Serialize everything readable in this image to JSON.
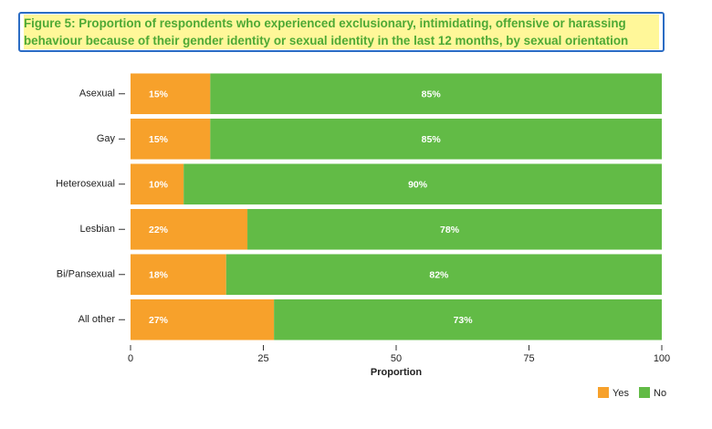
{
  "chart_data": {
    "type": "stacked-barh",
    "title": [
      "Figure 5: Proportion of respondents who experienced exclusionary, intimidating, offensive or harassing",
      "behaviour because of their gender identity or sexual identity in the last 12 months, by sexual orientation"
    ],
    "categories": [
      "Asexual",
      "Gay",
      "Heterosexual",
      "Lesbian",
      "Bi/Pansexual",
      "All other"
    ],
    "series": [
      {
        "name": "Yes",
        "color": "#f7a12b",
        "values": [
          15,
          15,
          10,
          22,
          18,
          27
        ],
        "value_labels": [
          "15%",
          "15%",
          "10%",
          "22%",
          "18%",
          "27%"
        ]
      },
      {
        "name": "No",
        "color": "#62bb46",
        "values": [
          85,
          85,
          90,
          78,
          82,
          73
        ],
        "value_labels": [
          "85%",
          "85%",
          "90%",
          "78%",
          "82%",
          "73%"
        ]
      }
    ],
    "xlabel": "Proportion",
    "xlim": [
      0,
      100
    ],
    "xticks": [
      0,
      25,
      50,
      75,
      100
    ],
    "legend": "bottom-right"
  }
}
